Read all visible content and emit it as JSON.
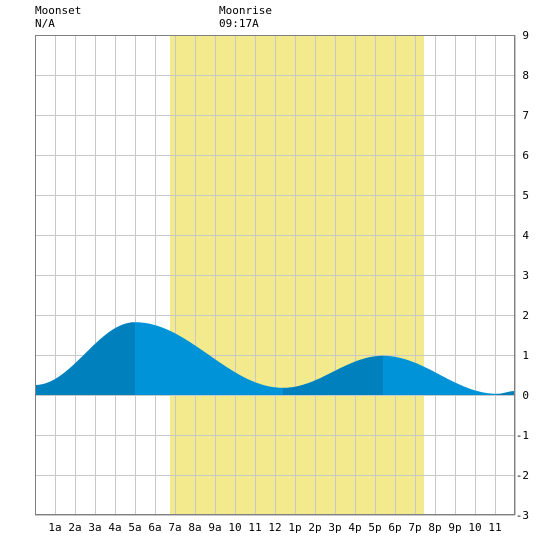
{
  "moon": {
    "moonset_label": "Moonset",
    "moonset_time": "N/A",
    "moonrise_label": "Moonrise",
    "moonrise_time": "09:17A"
  },
  "chart_data": {
    "type": "area",
    "xlabel": "",
    "ylabel": "",
    "xlim": [
      0,
      24
    ],
    "ylim": [
      -3,
      9
    ],
    "grid": true,
    "x_ticks": [
      {
        "x": 1,
        "label": "1a"
      },
      {
        "x": 2,
        "label": "2a"
      },
      {
        "x": 3,
        "label": "3a"
      },
      {
        "x": 4,
        "label": "4a"
      },
      {
        "x": 5,
        "label": "5a"
      },
      {
        "x": 6,
        "label": "6a"
      },
      {
        "x": 7,
        "label": "7a"
      },
      {
        "x": 8,
        "label": "8a"
      },
      {
        "x": 9,
        "label": "9a"
      },
      {
        "x": 10,
        "label": "10"
      },
      {
        "x": 11,
        "label": "11"
      },
      {
        "x": 12,
        "label": "12"
      },
      {
        "x": 13,
        "label": "1p"
      },
      {
        "x": 14,
        "label": "2p"
      },
      {
        "x": 15,
        "label": "3p"
      },
      {
        "x": 16,
        "label": "4p"
      },
      {
        "x": 17,
        "label": "5p"
      },
      {
        "x": 18,
        "label": "6p"
      },
      {
        "x": 19,
        "label": "7p"
      },
      {
        "x": 20,
        "label": "8p"
      },
      {
        "x": 21,
        "label": "9p"
      },
      {
        "x": 22,
        "label": "10"
      },
      {
        "x": 23,
        "label": "11"
      }
    ],
    "y_ticks": [
      -3,
      -2,
      -1,
      0,
      1,
      2,
      3,
      4,
      5,
      6,
      7,
      8,
      9
    ],
    "daylight": {
      "start": 6.75,
      "end": 19.45
    },
    "tide_extrema": [
      {
        "x": 0,
        "y": 0.25
      },
      {
        "x": 5.0,
        "y": 1.82
      },
      {
        "x": 12.4,
        "y": 0.18
      },
      {
        "x": 17.4,
        "y": 0.98
      },
      {
        "x": 23.1,
        "y": 0.03
      },
      {
        "x": 24,
        "y": 0.1
      }
    ],
    "colors": {
      "daylight": "#f2ea8c",
      "tide_light": "#0093d8",
      "tide_dark": "#0080bd",
      "grid": "#c8c8c8",
      "background": "#ffffff"
    }
  }
}
